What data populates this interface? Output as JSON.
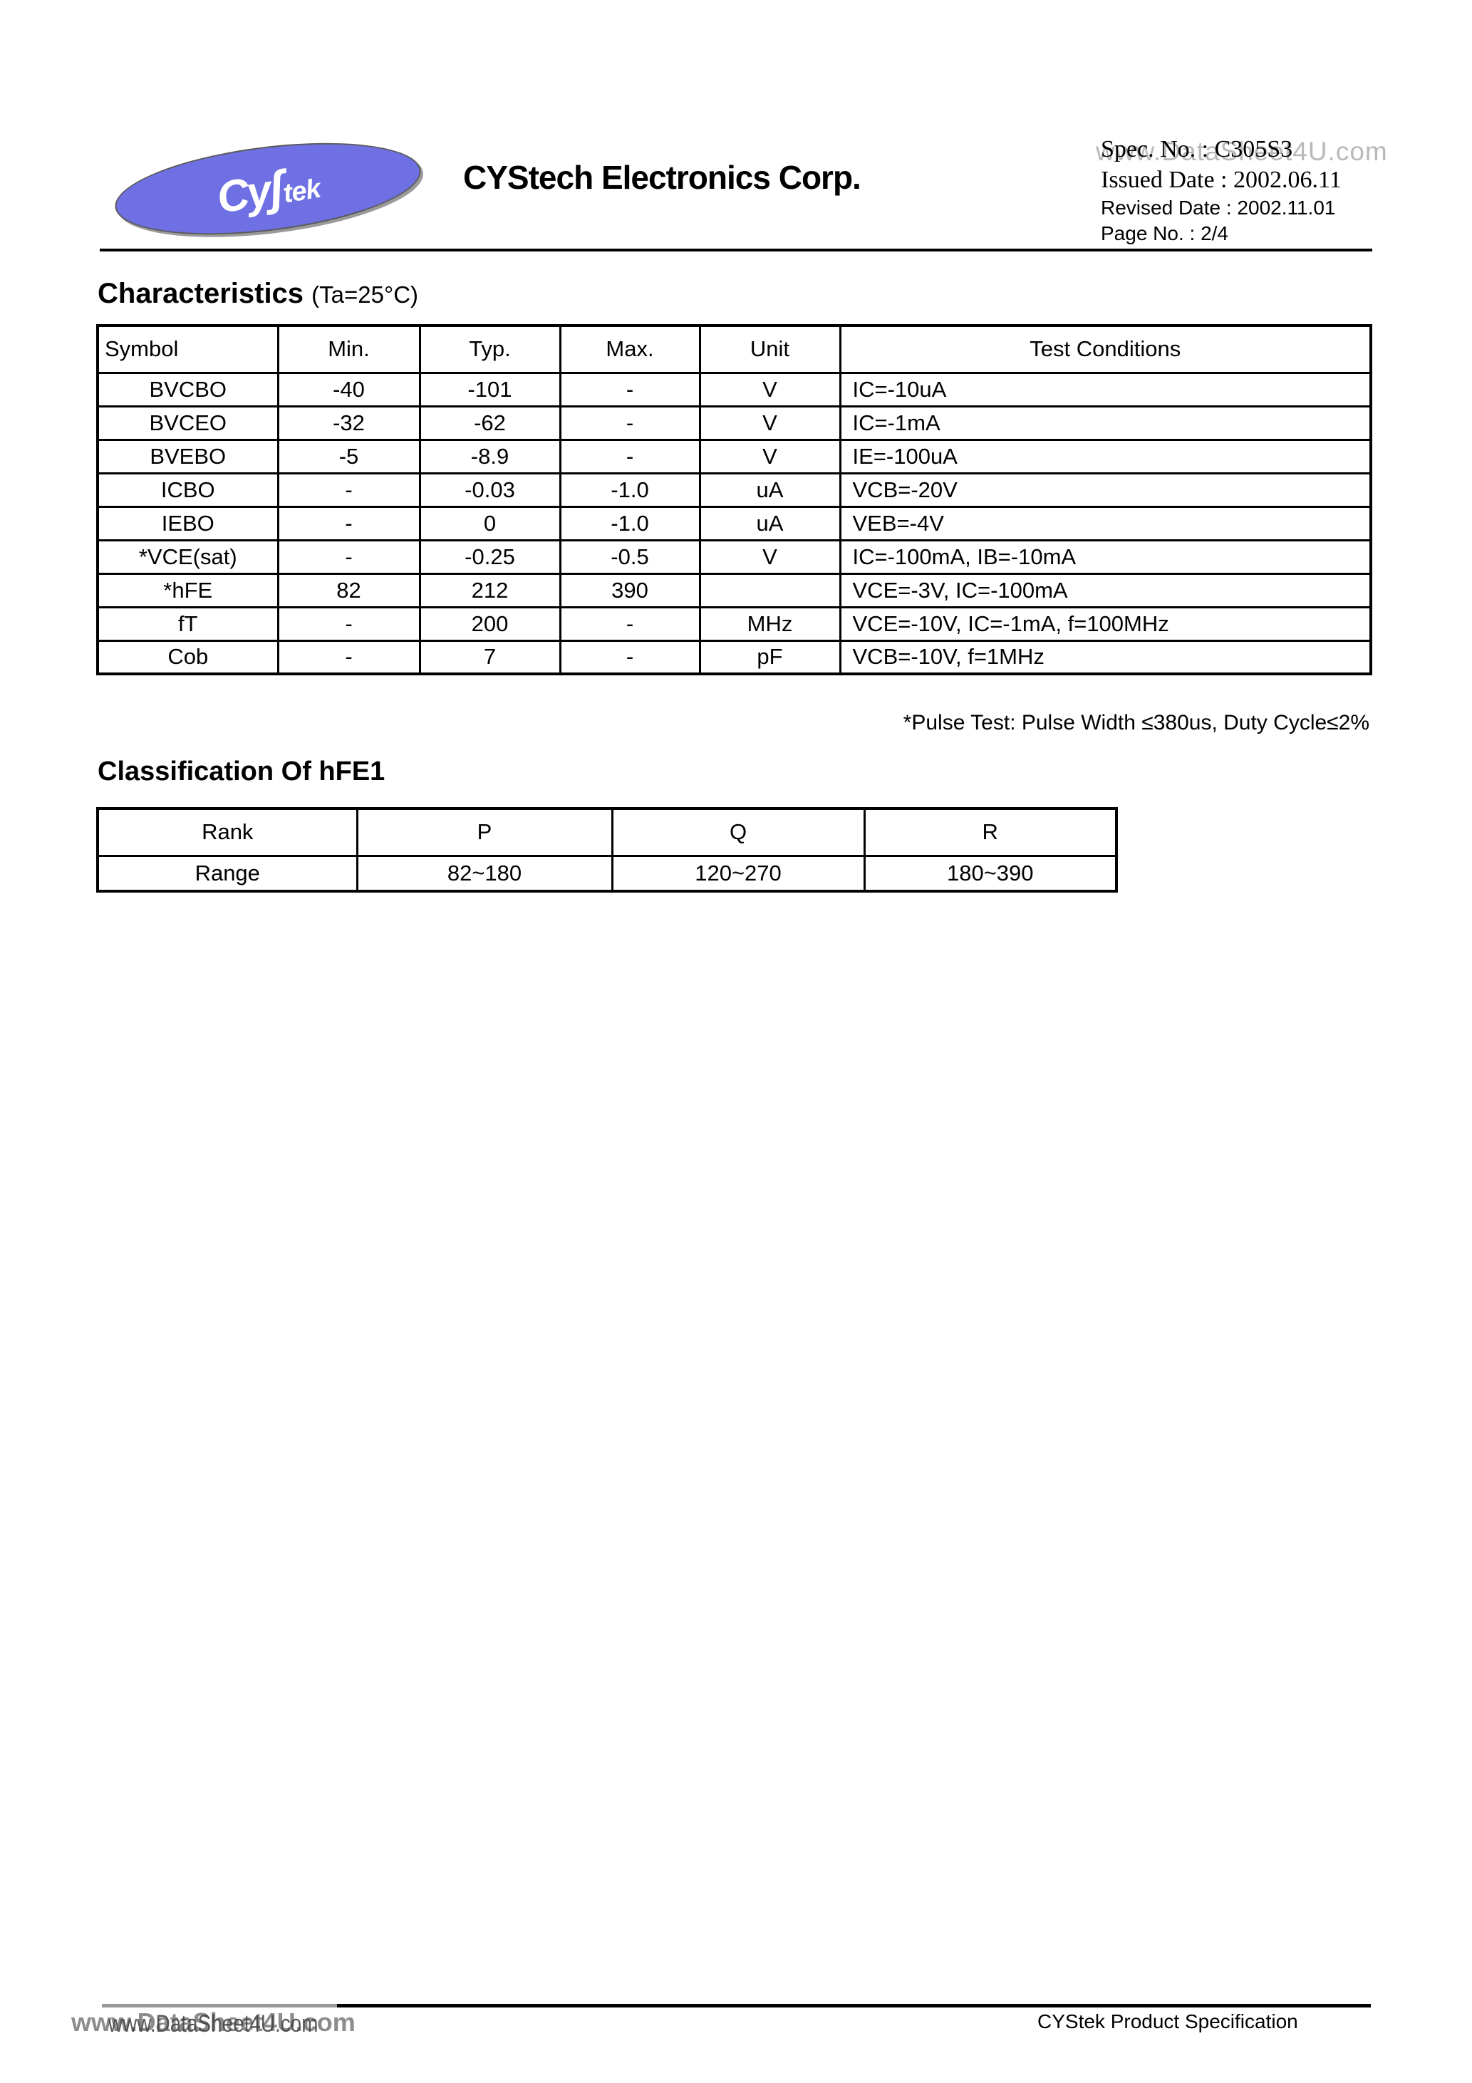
{
  "header": {
    "company_name": "CYStech Electronics Corp.",
    "logo": {
      "text_main": "Cy",
      "text_glyph": "ʃ",
      "text_tail": "tek",
      "ellipse_color": "#6e70e3"
    },
    "spec_no": "Spec. No. : C305S3",
    "issued_date": "Issued Date : 2002.06.11",
    "revised_date": "Revised Date : 2002.11.01",
    "page_no": "Page No. : 2/4",
    "watermark": "www.DataSheet4U.com"
  },
  "characteristics": {
    "title": "Characteristics",
    "subtitle": "(Ta=25°C)",
    "columns": [
      "Symbol",
      "Min.",
      "Typ.",
      "Max.",
      "Unit",
      "Test Conditions"
    ],
    "rows": [
      [
        "BVCBO",
        "-40",
        "-101",
        "-",
        "V",
        "IC=-10uA"
      ],
      [
        "BVCEO",
        "-32",
        "-62",
        "-",
        "V",
        "IC=-1mA"
      ],
      [
        "BVEBO",
        "-5",
        "-8.9",
        "-",
        "V",
        "IE=-100uA"
      ],
      [
        "ICBO",
        "-",
        "-0.03",
        "-1.0",
        "uA",
        "VCB=-20V"
      ],
      [
        "IEBO",
        "-",
        "0",
        "-1.0",
        "uA",
        "VEB=-4V"
      ],
      [
        "*VCE(sat)",
        "-",
        "-0.25",
        "-0.5",
        "V",
        "IC=-100mA, IB=-10mA"
      ],
      [
        "*hFE",
        "82",
        "212",
        "390",
        "",
        "VCE=-3V, IC=-100mA"
      ],
      [
        "fT",
        "-",
        "200",
        "-",
        "MHz",
        "VCE=-10V, IC=-1mA, f=100MHz"
      ],
      [
        "Cob",
        "-",
        "7",
        "-",
        "pF",
        "VCB=-10V, f=1MHz"
      ]
    ],
    "note": "*Pulse Test: Pulse Width ≤380us, Duty Cycle≤2%"
  },
  "classification": {
    "title": "Classification Of hFE1",
    "rows": [
      [
        "Rank",
        "P",
        "Q",
        "R"
      ],
      [
        "Range",
        "82~180",
        "120~270",
        "180~390"
      ]
    ]
  },
  "footer": {
    "watermark": "www.DataSheet4U.com",
    "right_text": "CYStek Product Specification"
  }
}
